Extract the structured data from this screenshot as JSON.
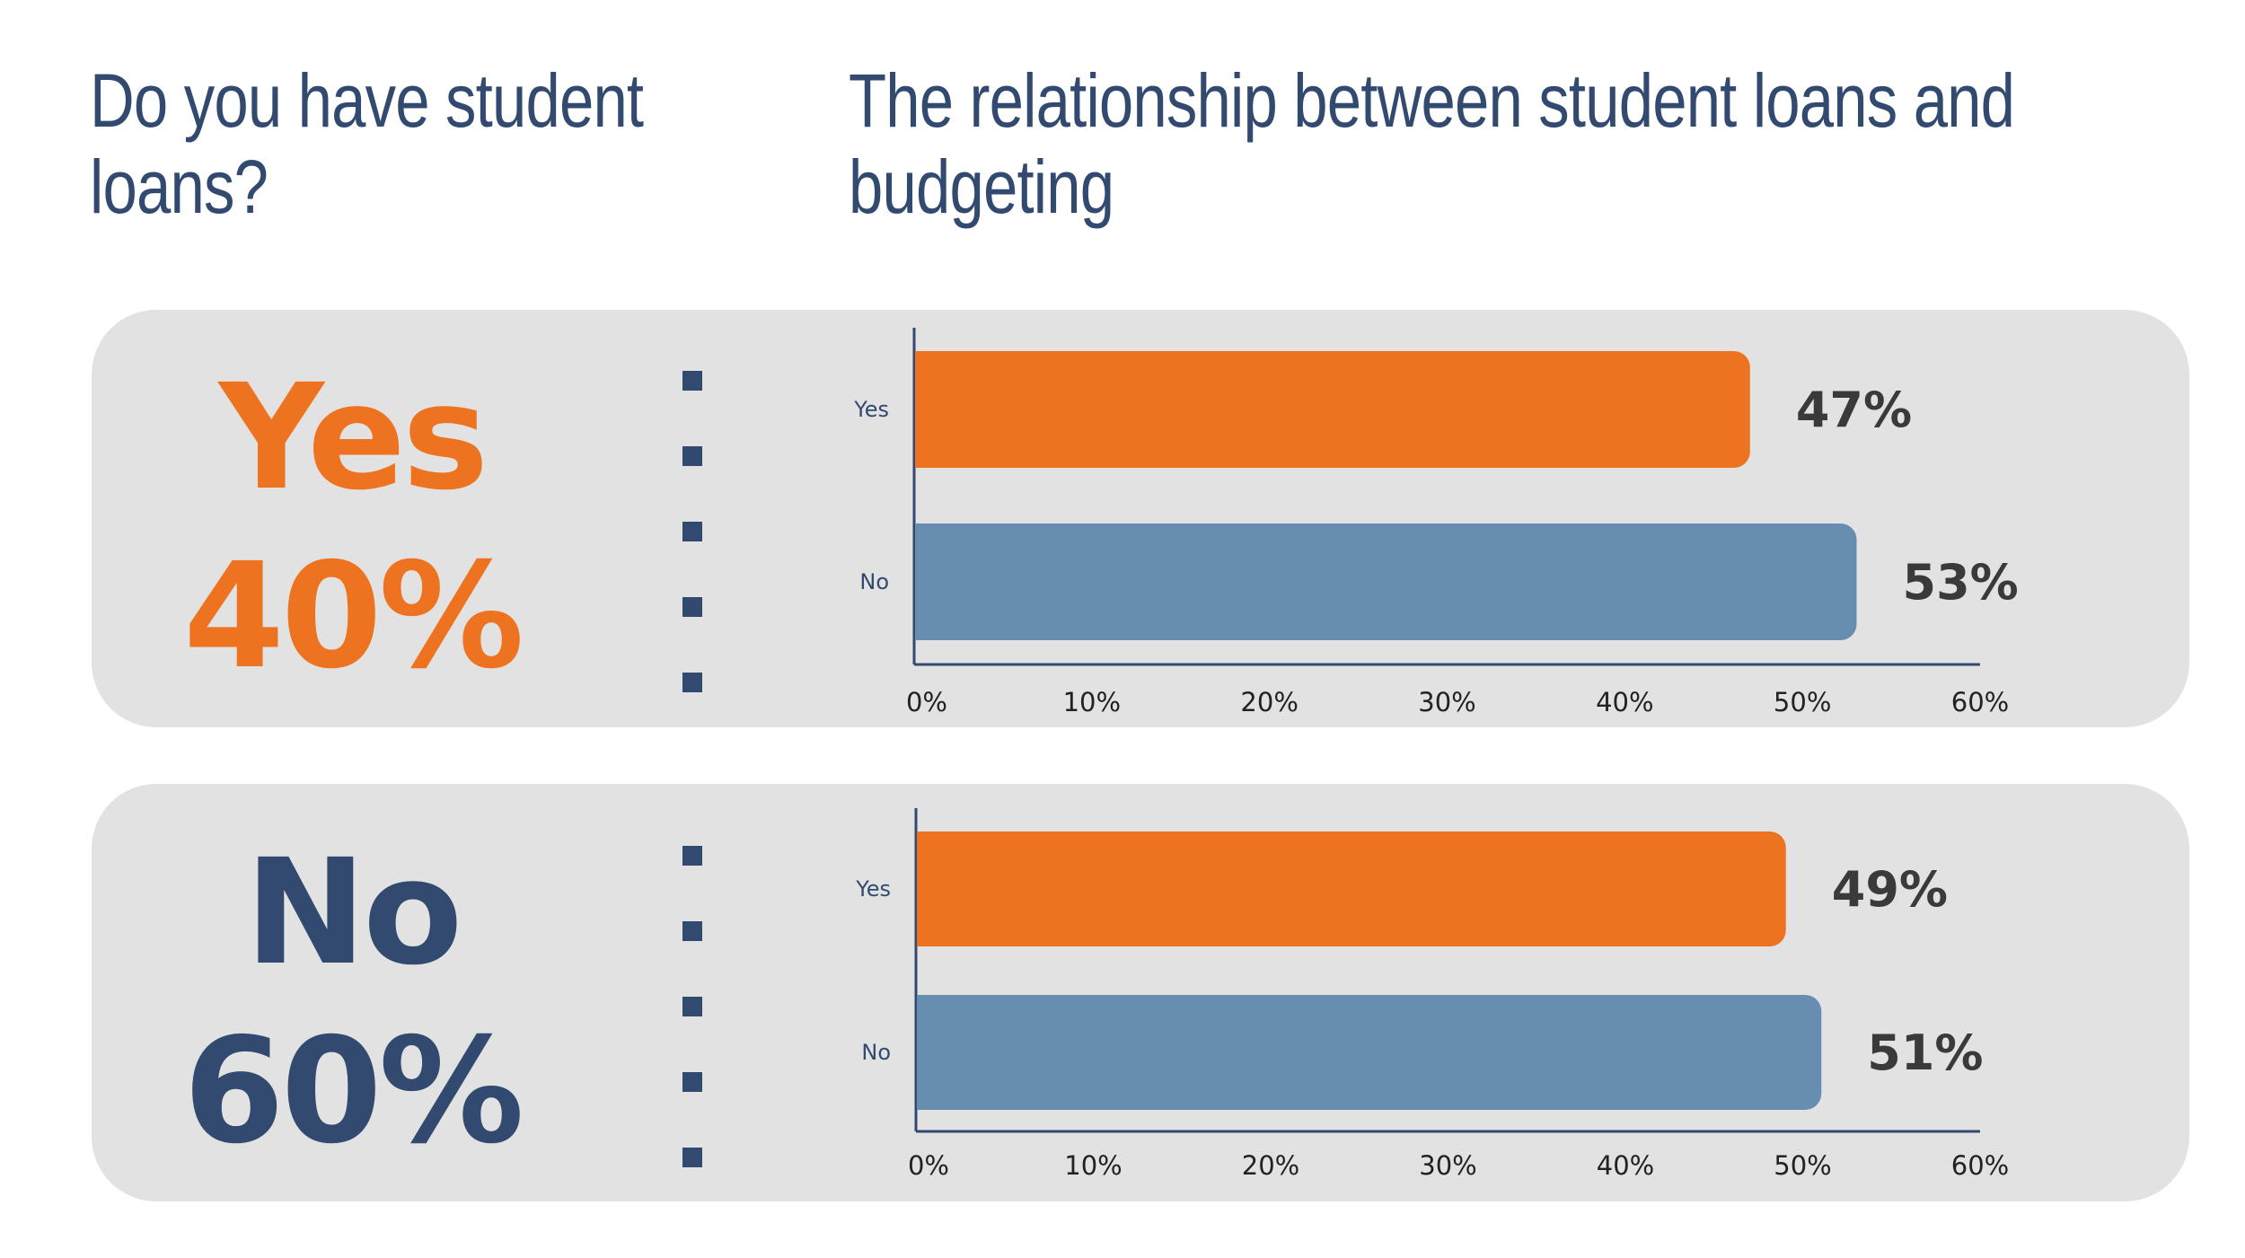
{
  "left_title": "Do you have student loans?",
  "right_title": "The relationship between student loans and budgeting",
  "panels": [
    {
      "answer": "Yes",
      "percent": "40%",
      "color": "#ee7320"
    },
    {
      "answer": "No",
      "percent": "60%",
      "color": "#324a6f"
    }
  ],
  "chart_data": [
    {
      "type": "bar",
      "orientation": "horizontal",
      "categories": [
        "Yes",
        "No"
      ],
      "values": [
        47,
        53
      ],
      "value_labels": [
        "47%",
        "53%"
      ],
      "colors": [
        "#ee7320",
        "#678eb1"
      ],
      "xlim": [
        0,
        60
      ],
      "xticks": [
        0,
        10,
        20,
        30,
        40,
        50,
        60
      ],
      "xtick_labels": [
        "0%",
        "10%",
        "20%",
        "30%",
        "40%",
        "50%",
        "60%"
      ],
      "grid": false
    },
    {
      "type": "bar",
      "orientation": "horizontal",
      "categories": [
        "Yes",
        "No"
      ],
      "values": [
        49,
        51
      ],
      "value_labels": [
        "49%",
        "51%"
      ],
      "colors": [
        "#ee7320",
        "#678eb1"
      ],
      "xlim": [
        0,
        60
      ],
      "xticks": [
        0,
        10,
        20,
        30,
        40,
        50,
        60
      ],
      "xtick_labels": [
        "0%",
        "10%",
        "20%",
        "30%",
        "40%",
        "50%",
        "60%"
      ],
      "grid": false
    }
  ]
}
